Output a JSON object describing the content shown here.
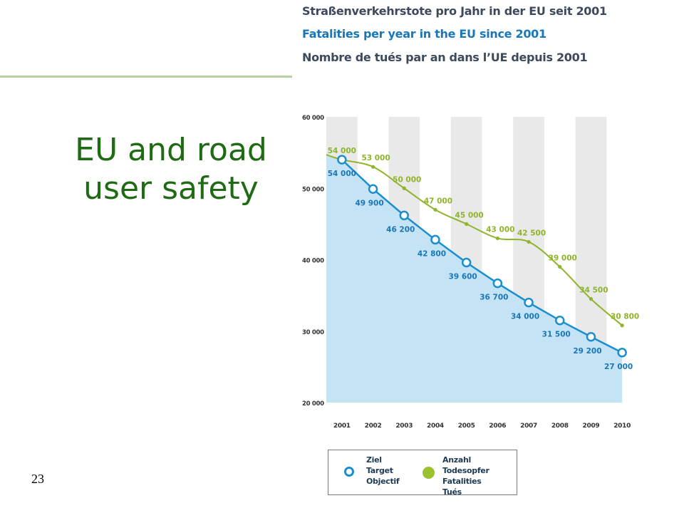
{
  "slide": {
    "title_lines": [
      "EU and road",
      "user safety"
    ],
    "page_number": "23"
  },
  "chart_data": {
    "type": "line",
    "title": "Straßenverkehrstote pro Jahr in der EU seit 2001",
    "subtitle": "Fatalities per year in the EU since 2001",
    "subtitle2": "Nombre de tués par an dans l’UE depuis 2001",
    "x": [
      2001,
      2002,
      2003,
      2004,
      2005,
      2006,
      2007,
      2008,
      2009,
      2010
    ],
    "x_tick_labels": [
      "2001",
      "2002",
      "2003",
      "2004",
      "2005",
      "2006",
      "2007",
      "2008",
      "2009",
      "2010"
    ],
    "ylim": [
      20000,
      60000
    ],
    "y_ticks": [
      20000,
      30000,
      40000,
      50000,
      60000
    ],
    "y_tick_labels": [
      "20 000",
      "30 000",
      "40 000",
      "50 000",
      "60 000"
    ],
    "series": [
      {
        "name": "Ziel / Target / Objectif",
        "color": "#1a8fd0",
        "fill": "#c4e4f6",
        "values": [
          54000,
          49900,
          46200,
          42800,
          39600,
          36700,
          34000,
          31500,
          29200,
          27000
        ],
        "labels": [
          "54 000",
          "49 900",
          "46 200",
          "42 800",
          "39 600",
          "36 700",
          "34 000",
          "31 500",
          "29 200",
          "27 000"
        ]
      },
      {
        "name": "Anzahl Todesopfer / Fatalities / Tués",
        "color": "#8fb42a",
        "values": [
          54000,
          53000,
          50000,
          47000,
          45000,
          43000,
          42500,
          39000,
          34500,
          30800
        ],
        "labels": [
          "54 000",
          "53 000",
          "50 000",
          "47 000",
          "45 000",
          "43 000",
          "42 500",
          "39 000",
          "34 500",
          "30 800"
        ]
      }
    ],
    "grid": "alternating vertical bands",
    "legend": {
      "position": "bottom",
      "target_lines": [
        "Ziel",
        "Target",
        "Objectif"
      ],
      "fatal_lines": [
        "Anzahl Todesopfer",
        "Fatalities",
        "Tués"
      ]
    }
  }
}
